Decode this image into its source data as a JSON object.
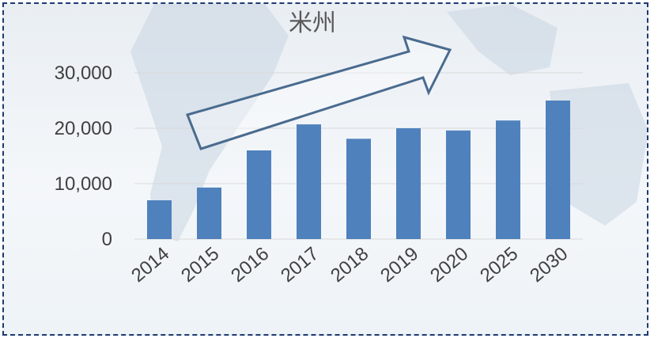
{
  "chart_data": {
    "type": "bar",
    "title": "米州",
    "categories": [
      "2014",
      "2015",
      "2016",
      "2017",
      "2018",
      "2019",
      "2020",
      "2025",
      "2030"
    ],
    "values": [
      7000,
      9300,
      16000,
      20700,
      18100,
      20000,
      19600,
      21400,
      25000
    ],
    "ylim": [
      0,
      30000
    ],
    "yticks": [
      "0",
      "10,000",
      "20,000",
      "30,000"
    ],
    "grid": true,
    "legend": "none",
    "colors": {
      "bar": "#4f81bd",
      "grid": "#d9d9d9",
      "arrow": "#4a6b8f",
      "border": "#1e3a6e"
    },
    "annotation": "upward-trend-arrow"
  }
}
